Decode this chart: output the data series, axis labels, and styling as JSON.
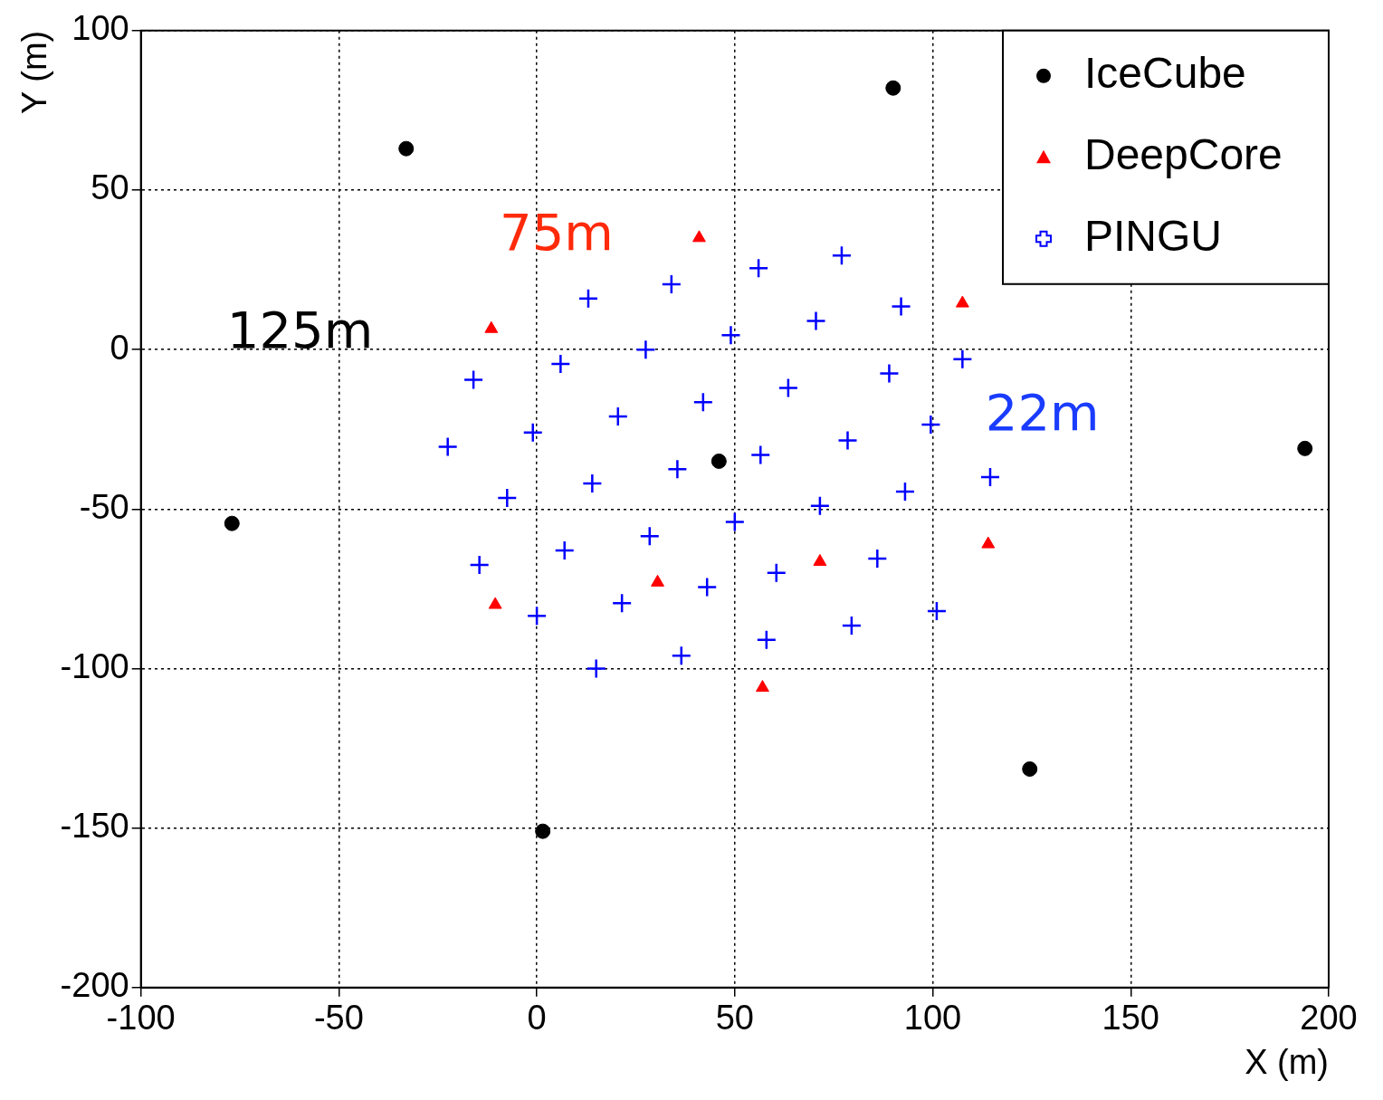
{
  "chart_data": {
    "type": "scatter",
    "xlabel": "X (m)",
    "ylabel": "Y (m)",
    "xlim": [
      -100,
      200
    ],
    "ylim": [
      -200,
      100
    ],
    "xticks": [
      -100,
      -50,
      0,
      50,
      100,
      150,
      200
    ],
    "yticks": [
      -200,
      -150,
      -100,
      -50,
      0,
      50,
      100
    ],
    "grid": true,
    "legend": "top right",
    "series": [
      {
        "name": "IceCube",
        "color": "#000000",
        "marker": "circle",
        "x": [
          -33,
          90,
          -77,
          46,
          194,
          124.5,
          1.5
        ],
        "values": [
          63,
          82,
          -54.5,
          -35,
          -31,
          -131.5,
          -151
        ]
      },
      {
        "name": "DeepCore",
        "color": "#ff0000",
        "marker": "triangle",
        "x": [
          41,
          107.5,
          -11.5,
          114,
          71.5,
          30.5,
          -10.5,
          57
        ],
        "values": [
          35,
          14.5,
          6.5,
          -61,
          -66.5,
          -73,
          -80,
          -106
        ]
      },
      {
        "name": "PINGU",
        "color": "#0000ff",
        "marker": "cross",
        "x": [
          77,
          56,
          34,
          13,
          92,
          70.5,
          49,
          27.5,
          6,
          107.5,
          89,
          63.5,
          42,
          20.5,
          -16,
          -1,
          -22.5,
          99.5,
          78.5,
          56.5,
          35.5,
          14,
          -7.5,
          114.5,
          93,
          71.5,
          50,
          28.5,
          7,
          -14.5,
          86,
          60.5,
          43,
          21.5,
          0,
          101,
          79.5,
          58,
          36.5,
          15
        ],
        "values": [
          29.5,
          25.5,
          20.5,
          16,
          13.5,
          9,
          4.5,
          0,
          -4.5,
          -3,
          -7.5,
          -12,
          -16.5,
          -21,
          -9.5,
          -26,
          -30.5,
          -23.5,
          -28.5,
          -33,
          -37.5,
          -42,
          -46.5,
          -40,
          -44.5,
          -49,
          -54,
          -58.5,
          -63,
          -67.5,
          -65.5,
          -70,
          -74.5,
          -79.5,
          -83.5,
          -82,
          -86.5,
          -91,
          -96,
          -100
        ]
      }
    ],
    "annotations": [
      "75m",
      "125m",
      "22m"
    ]
  }
}
